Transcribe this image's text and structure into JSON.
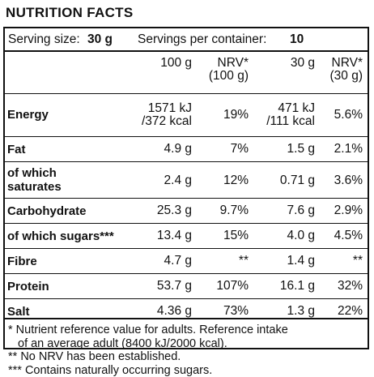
{
  "title": "NUTRITION FACTS",
  "serving": {
    "size_label": "Serving size:",
    "size_value": "30 g",
    "per_container_label": "Servings per container:",
    "per_container_value": "10"
  },
  "headers": [
    "100 g",
    "NRV*\n(100 g)",
    "30 g",
    "NRV*\n(30 g)"
  ],
  "rows": [
    {
      "label": "Energy",
      "v100": "1571 kJ\n/372 kcal",
      "nrv100": "19%",
      "v30": "471 kJ\n/111 kcal",
      "nrv30": "5.6%"
    },
    {
      "label": "Fat",
      "v100": "4.9 g",
      "nrv100": "7%",
      "v30": "1.5 g",
      "nrv30": "2.1%"
    },
    {
      "label": "of which\nsaturates",
      "v100": "2.4 g",
      "nrv100": "12%",
      "v30": "0.71 g",
      "nrv30": "3.6%"
    },
    {
      "label": "Carbohydrate",
      "v100": "25.3 g",
      "nrv100": "9.7%",
      "v30": "7.6 g",
      "nrv30": "2.9%"
    },
    {
      "label": "of which sugars***",
      "v100": "13.4 g",
      "nrv100": "15%",
      "v30": "4.0 g",
      "nrv30": "4.5%"
    },
    {
      "label": "Fibre",
      "v100": "4.7 g",
      "nrv100": "**",
      "v30": "1.4 g",
      "nrv30": "**"
    },
    {
      "label": "Protein",
      "v100": "53.7 g",
      "nrv100": "107%",
      "v30": "16.1 g",
      "nrv30": "32%"
    },
    {
      "label": "Salt",
      "v100": "4.36 g",
      "nrv100": "73%",
      "v30": "1.3 g",
      "nrv30": "22%"
    }
  ],
  "footnotes": [
    "* Nutrient reference value for adults. Reference intake",
    "of an average adult (8400 kJ/2000 kcal).",
    "** No NRV has been established.",
    "*** Contains naturally occurring sugars."
  ]
}
